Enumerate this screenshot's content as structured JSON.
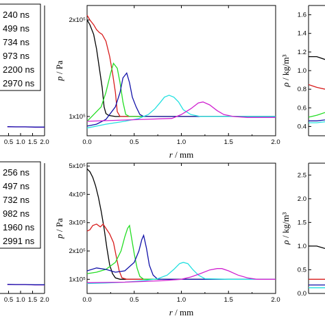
{
  "colors": {
    "black": "#000000",
    "red": "#d81b1b",
    "green": "#22dd22",
    "blue": "#1010a8",
    "cyan": "#22e0e0",
    "magenta": "#d020d0"
  },
  "chart_data": [
    {
      "id": "top-left-partial",
      "type": "line",
      "x_ticks": [
        "0.5",
        "1.0",
        "1.5",
        "2.0"
      ],
      "legend": [
        "240 ns",
        "499 ns",
        "734 ns",
        "973 ns",
        "2200 ns",
        "2970 ns"
      ],
      "series_colors": [
        "black",
        "red",
        "green",
        "blue",
        "cyan",
        "magenta"
      ],
      "xlim": [
        0,
        2.0
      ],
      "series": [
        {
          "color": "magenta",
          "x": [
            0.45,
            0.8,
            1.2,
            1.6,
            2.0
          ],
          "y": [
            0.5,
            0.5,
            0.5,
            0.49,
            0.49
          ]
        },
        {
          "color": "blue",
          "x": [
            0.45,
            0.8,
            1.2,
            1.6,
            2.0
          ],
          "y": [
            0.505,
            0.5,
            0.5,
            0.495,
            0.495
          ]
        }
      ]
    },
    {
      "id": "top-middle",
      "type": "line",
      "ylabel_symbol": "p",
      "ylabel_unit": "Pa",
      "xlabel_symbol": "r",
      "xlabel_unit": "mm",
      "xlim": [
        0,
        2.0
      ],
      "ylim": [
        0.8,
        2.15
      ],
      "x_ticks": [
        "0.0",
        "0.5",
        "1.0",
        "1.5",
        "2.0"
      ],
      "y_ticks": [
        {
          "label": "1x10⁵",
          "value": 1.0
        },
        {
          "label": "2x10⁵",
          "value": 2.0
        }
      ],
      "series": [
        {
          "color": "black",
          "x": [
            0,
            0.03,
            0.07,
            0.1,
            0.13,
            0.16,
            0.18,
            0.2,
            0.23,
            0.3,
            0.4,
            0.6,
            1.0,
            2.0
          ],
          "y": [
            2.0,
            1.95,
            1.85,
            1.7,
            1.5,
            1.3,
            1.1,
            1.03,
            1.01,
            1.0,
            1.0,
            1.0,
            1.0,
            1.0
          ]
        },
        {
          "color": "red",
          "x": [
            0,
            0.03,
            0.07,
            0.1,
            0.13,
            0.16,
            0.2,
            0.24,
            0.27,
            0.3,
            0.32,
            0.35,
            0.4,
            0.6,
            1.0,
            2.0
          ],
          "y": [
            2.05,
            2.0,
            1.95,
            1.9,
            1.87,
            1.85,
            1.78,
            1.62,
            1.45,
            1.25,
            1.05,
            1.0,
            1.0,
            1.0,
            1.0,
            1.0
          ]
        },
        {
          "color": "green",
          "x": [
            0,
            0.05,
            0.1,
            0.15,
            0.2,
            0.25,
            0.28,
            0.32,
            0.35,
            0.38,
            0.41,
            0.45,
            0.5,
            1.0,
            2.0
          ],
          "y": [
            0.95,
            1.0,
            1.05,
            1.1,
            1.25,
            1.45,
            1.55,
            1.5,
            1.35,
            1.15,
            1.02,
            1.0,
            1.0,
            1.0,
            1.0
          ]
        },
        {
          "color": "blue",
          "x": [
            0,
            0.1,
            0.2,
            0.3,
            0.35,
            0.38,
            0.42,
            0.45,
            0.48,
            0.52,
            0.56,
            0.6,
            0.7,
            1.0,
            2.0
          ],
          "y": [
            0.9,
            0.92,
            0.97,
            1.1,
            1.25,
            1.4,
            1.45,
            1.35,
            1.2,
            1.1,
            1.02,
            1.0,
            1.0,
            1.0,
            1.0
          ]
        },
        {
          "color": "cyan",
          "x": [
            0,
            0.2,
            0.4,
            0.55,
            0.65,
            0.72,
            0.78,
            0.82,
            0.87,
            0.92,
            0.97,
            1.02,
            1.1,
            1.2,
            1.5,
            2.0
          ],
          "y": [
            0.88,
            0.92,
            0.95,
            0.98,
            1.02,
            1.08,
            1.15,
            1.2,
            1.22,
            1.2,
            1.15,
            1.07,
            1.02,
            1.0,
            1.0,
            1.0
          ]
        },
        {
          "color": "magenta",
          "x": [
            0,
            0.3,
            0.6,
            0.9,
            1.0,
            1.1,
            1.18,
            1.23,
            1.3,
            1.38,
            1.45,
            1.55,
            1.7,
            2.0
          ],
          "y": [
            0.95,
            0.96,
            0.97,
            0.98,
            1.02,
            1.08,
            1.14,
            1.15,
            1.12,
            1.06,
            1.02,
            1.0,
            0.99,
            0.99
          ]
        }
      ]
    },
    {
      "id": "top-right-partial",
      "type": "line",
      "ylabel_symbol": "ρ",
      "ylabel_unit": "kg/m³",
      "ylim": [
        0.3,
        1.7
      ],
      "y_ticks": [
        "0.4",
        "0.6",
        "0.8",
        "1.0",
        "1.2",
        "1.4",
        "1.6"
      ],
      "series": [
        {
          "color": "black",
          "x": [
            0,
            0.02,
            0.04
          ],
          "y": [
            1.15,
            1.15,
            1.12
          ]
        },
        {
          "color": "red",
          "x": [
            0,
            0.02,
            0.04
          ],
          "y": [
            0.85,
            0.82,
            0.8
          ]
        },
        {
          "color": "green",
          "x": [
            0,
            0.02,
            0.04
          ],
          "y": [
            0.5,
            0.52,
            0.55
          ]
        },
        {
          "color": "blue",
          "x": [
            0,
            0.02,
            0.04
          ],
          "y": [
            0.46,
            0.46,
            0.47
          ]
        },
        {
          "color": "cyan",
          "x": [
            0,
            0.02,
            0.04
          ],
          "y": [
            0.44,
            0.44,
            0.45
          ]
        }
      ]
    },
    {
      "id": "bottom-left-partial",
      "type": "line",
      "x_ticks": [
        "0.5",
        "1.0",
        "1.5",
        "2.0"
      ],
      "legend": [
        "256 ns",
        "497 ns",
        "732 ns",
        "982 ns",
        "1960 ns",
        "2991 ns"
      ],
      "series_colors": [
        "black",
        "red",
        "green",
        "blue",
        "cyan",
        "magenta"
      ],
      "xlim": [
        0,
        2.0
      ],
      "series": [
        {
          "color": "magenta",
          "x": [
            0.45,
            0.8,
            1.2,
            1.6,
            2.0
          ],
          "y": [
            0.5,
            0.5,
            0.5,
            0.49,
            0.49
          ]
        },
        {
          "color": "blue",
          "x": [
            0.45,
            0.8,
            1.2,
            1.6,
            2.0
          ],
          "y": [
            0.505,
            0.5,
            0.5,
            0.495,
            0.495
          ]
        }
      ]
    },
    {
      "id": "bottom-middle",
      "type": "line",
      "ylabel_symbol": "p",
      "ylabel_unit": "Pa",
      "xlabel_symbol": "r",
      "xlabel_unit": "mm",
      "xlim": [
        0,
        2.0
      ],
      "ylim": [
        0.5,
        5.1
      ],
      "x_ticks": [
        "0.0",
        "0.5",
        "1.0",
        "1.5",
        "2.0"
      ],
      "y_ticks": [
        {
          "label": "1x10⁵",
          "value": 1.0
        },
        {
          "label": "2x10⁵",
          "value": 2.0
        },
        {
          "label": "3x10⁵",
          "value": 3.0
        },
        {
          "label": "4x10⁵",
          "value": 4.0
        },
        {
          "label": "5x10⁵",
          "value": 5.0
        }
      ],
      "series": [
        {
          "color": "black",
          "x": [
            0,
            0.03,
            0.06,
            0.09,
            0.12,
            0.15,
            0.18,
            0.21,
            0.24,
            0.27,
            0.3,
            0.35,
            0.5,
            1.0,
            2.0
          ],
          "y": [
            4.9,
            4.8,
            4.6,
            4.3,
            3.9,
            3.4,
            2.8,
            2.1,
            1.5,
            1.2,
            1.05,
            1.0,
            1.0,
            1.0,
            1.0
          ]
        },
        {
          "color": "red",
          "x": [
            0,
            0.03,
            0.06,
            0.1,
            0.14,
            0.17,
            0.2,
            0.24,
            0.28,
            0.31,
            0.34,
            0.37,
            0.42,
            0.6,
            1.0,
            2.0
          ],
          "y": [
            2.7,
            2.75,
            2.9,
            2.95,
            2.85,
            2.95,
            2.8,
            2.6,
            2.3,
            1.8,
            1.3,
            1.05,
            1.0,
            1.0,
            1.0,
            1.0
          ]
        },
        {
          "color": "green",
          "x": [
            0,
            0.1,
            0.2,
            0.3,
            0.36,
            0.4,
            0.43,
            0.45,
            0.47,
            0.5,
            0.53,
            0.56,
            0.6,
            0.7,
            1.0,
            2.0
          ],
          "y": [
            1.2,
            1.25,
            1.35,
            1.6,
            2.0,
            2.5,
            2.8,
            2.9,
            2.5,
            1.9,
            1.4,
            1.1,
            1.0,
            1.0,
            1.0,
            1.0
          ]
        },
        {
          "color": "blue",
          "x": [
            0,
            0.1,
            0.2,
            0.3,
            0.4,
            0.5,
            0.55,
            0.58,
            0.6,
            0.63,
            0.66,
            0.7,
            0.75,
            1.0,
            2.0
          ],
          "y": [
            1.3,
            1.4,
            1.35,
            1.25,
            1.3,
            1.6,
            2.0,
            2.4,
            2.55,
            2.1,
            1.5,
            1.15,
            1.0,
            1.0,
            1.0
          ]
        },
        {
          "color": "cyan",
          "x": [
            0,
            0.2,
            0.4,
            0.6,
            0.75,
            0.85,
            0.92,
            0.98,
            1.02,
            1.07,
            1.12,
            1.18,
            1.25,
            1.5,
            2.0
          ],
          "y": [
            0.85,
            0.87,
            0.9,
            0.95,
            1.02,
            1.15,
            1.35,
            1.55,
            1.6,
            1.55,
            1.35,
            1.15,
            1.02,
            1.0,
            1.0
          ]
        },
        {
          "color": "magenta",
          "x": [
            0,
            0.4,
            0.8,
            1.0,
            1.1,
            1.2,
            1.3,
            1.38,
            1.43,
            1.5,
            1.6,
            1.7,
            1.8,
            2.0
          ],
          "y": [
            0.88,
            0.9,
            0.95,
            1.0,
            1.08,
            1.2,
            1.33,
            1.38,
            1.38,
            1.3,
            1.15,
            1.05,
            1.0,
            1.0
          ]
        }
      ]
    },
    {
      "id": "bottom-right-partial",
      "type": "line",
      "ylabel_symbol": "ρ",
      "ylabel_unit": "kg/m³",
      "ylim": [
        0,
        2.75
      ],
      "y_ticks": [
        "0.0",
        "0.5",
        "1.0",
        "1.5",
        "2.0",
        "2.5"
      ],
      "series": [
        {
          "color": "black",
          "x": [
            0,
            0.02,
            0.04
          ],
          "y": [
            1.0,
            1.0,
            0.95
          ]
        },
        {
          "color": "red",
          "x": [
            0,
            0.02,
            0.04
          ],
          "y": [
            0.3,
            0.3,
            0.3
          ]
        },
        {
          "color": "cyan",
          "x": [
            0,
            0.02,
            0.04
          ],
          "y": [
            0.12,
            0.12,
            0.12
          ]
        },
        {
          "color": "blue",
          "x": [
            0,
            0.02,
            0.04
          ],
          "y": [
            0.18,
            0.18,
            0.18
          ]
        }
      ]
    }
  ]
}
